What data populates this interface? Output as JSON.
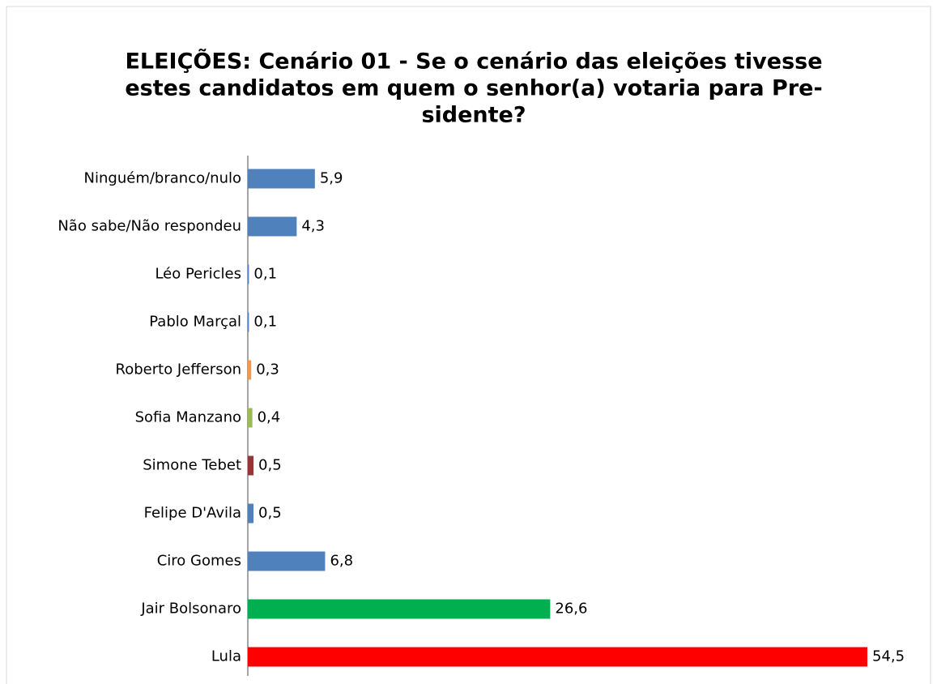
{
  "chart_data": {
    "type": "barh",
    "title": [
      "ELEIÇÕES: Cenário 01 - Se o cenário das eleições tivesse",
      "estes candidatos em quem o senhor(a) votaria para Pre-",
      "sidente?"
    ],
    "categories": [
      "Ninguém/branco/nulo",
      "Não sabe/Não respondeu",
      "Léo Pericles",
      "Pablo Marçal",
      "Roberto Jefferson",
      "Sofia Manzano",
      "Simone Tebet",
      "Felipe D'Avila",
      "Ciro Gomes",
      "Jair Bolsonaro",
      "Lula"
    ],
    "values": [
      5.9,
      4.3,
      0.1,
      0.1,
      0.3,
      0.4,
      0.5,
      0.5,
      6.8,
      26.6,
      54.5
    ],
    "value_labels": [
      "5,9",
      "4,3",
      "0,1",
      "0,1",
      "0,3",
      "0,4",
      "0,5",
      "0,5",
      "6,8",
      "26,6",
      "54,5"
    ],
    "colors": [
      "#4f81bd",
      "#4f81bd",
      "#4f81bd",
      "#4f81bd",
      "#f79646",
      "#9bbb59",
      "#953735",
      "#4f81bd",
      "#4f81bd",
      "#00b050",
      "#ff0000"
    ]
  }
}
